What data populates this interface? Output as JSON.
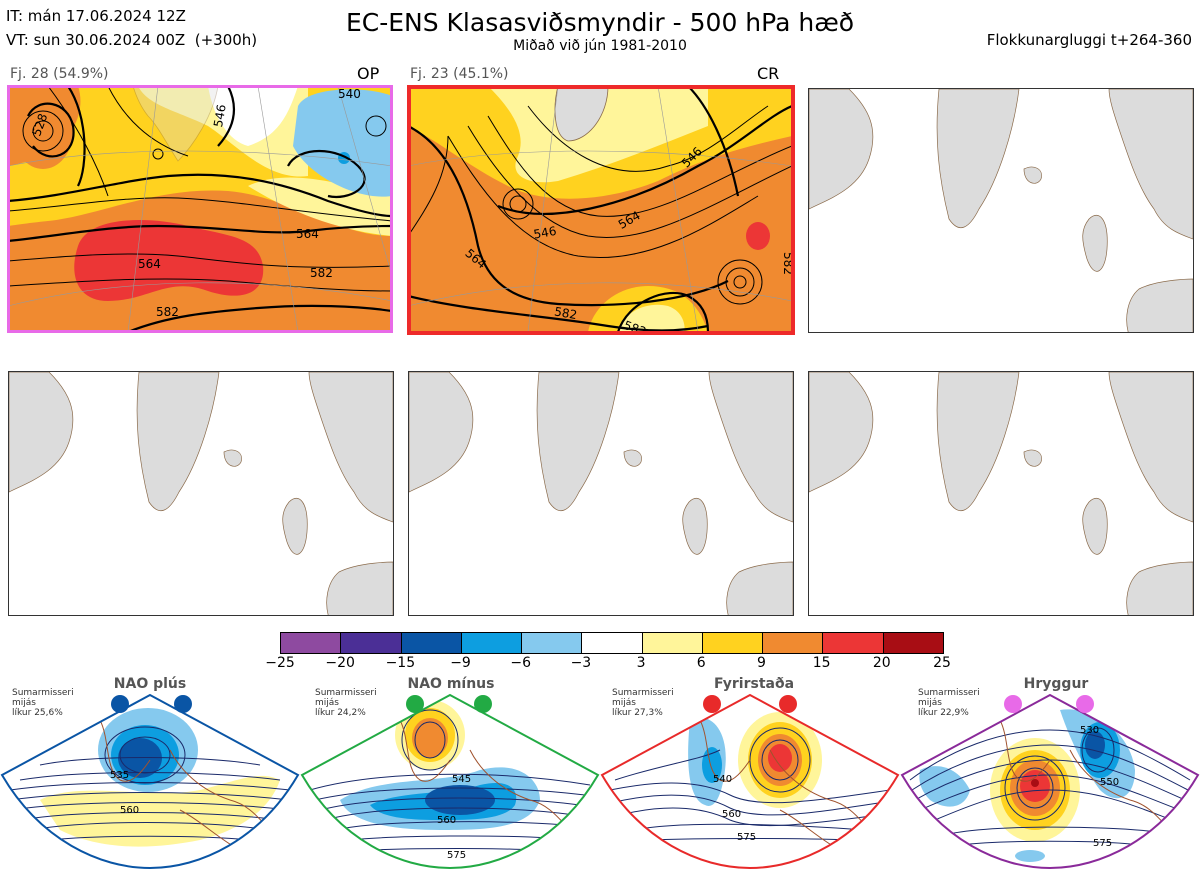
{
  "header": {
    "it_line": "IT: mán 17.06.2024 12Z",
    "vt_line": "VT: sun 30.06.2024 00Z  (+300h)",
    "title": "EC-ENS Klasasviðsmyndir - 500 hPa hæð",
    "subtitle": "Miðað við jún 1981-2010",
    "window": "Flokkunargluggi t+264-360"
  },
  "panels": [
    {
      "label": "Fj. 28 (54.9%)",
      "tag": "OP",
      "border": "#e86ae8",
      "contours": [
        "564",
        "564",
        "582",
        "582",
        "546",
        "528",
        "540"
      ]
    },
    {
      "label": "Fj. 23 (45.1%)",
      "tag": "CR",
      "border": "#ee2a2a",
      "contours": [
        "564",
        "546",
        "564",
        "546",
        "582",
        "582",
        "582"
      ]
    }
  ],
  "colorbar": {
    "colors": [
      "#8e4aa0",
      "#4b2f96",
      "#0a55a5",
      "#0d9ee0",
      "#85c9ee",
      "#ffffff",
      "#fff59a",
      "#ffd21f",
      "#f08a30",
      "#ec3636",
      "#a80d14"
    ],
    "ticks": [
      "−25",
      "−20",
      "−15",
      "−9",
      "−6",
      "−3",
      "3",
      "6",
      "9",
      "15",
      "20",
      "25"
    ]
  },
  "regimes": [
    {
      "name": "NAO plús",
      "note": [
        "Sumarmisseri",
        "mijás",
        "líkur 25,6%"
      ],
      "color": "#0a55a5",
      "contours": [
        "535",
        "560"
      ]
    },
    {
      "name": "NAO mínus",
      "note": [
        "Sumarmisseri",
        "mijás",
        "líkur 24,2%"
      ],
      "color": "#22aa44",
      "contours": [
        "545",
        "560",
        "575"
      ]
    },
    {
      "name": "Fyrirstaða",
      "note": [
        "Sumarmisseri",
        "mijás",
        "líkur 27,3%"
      ],
      "color": "#e82a2a",
      "contours": [
        "540",
        "560",
        "575"
      ]
    },
    {
      "name": "Hryggur",
      "note": [
        "Sumarmisseri",
        "mijás",
        "líkur 22,9%"
      ],
      "color": "#e86ae8",
      "contours": [
        "530",
        "550",
        "575"
      ]
    }
  ]
}
